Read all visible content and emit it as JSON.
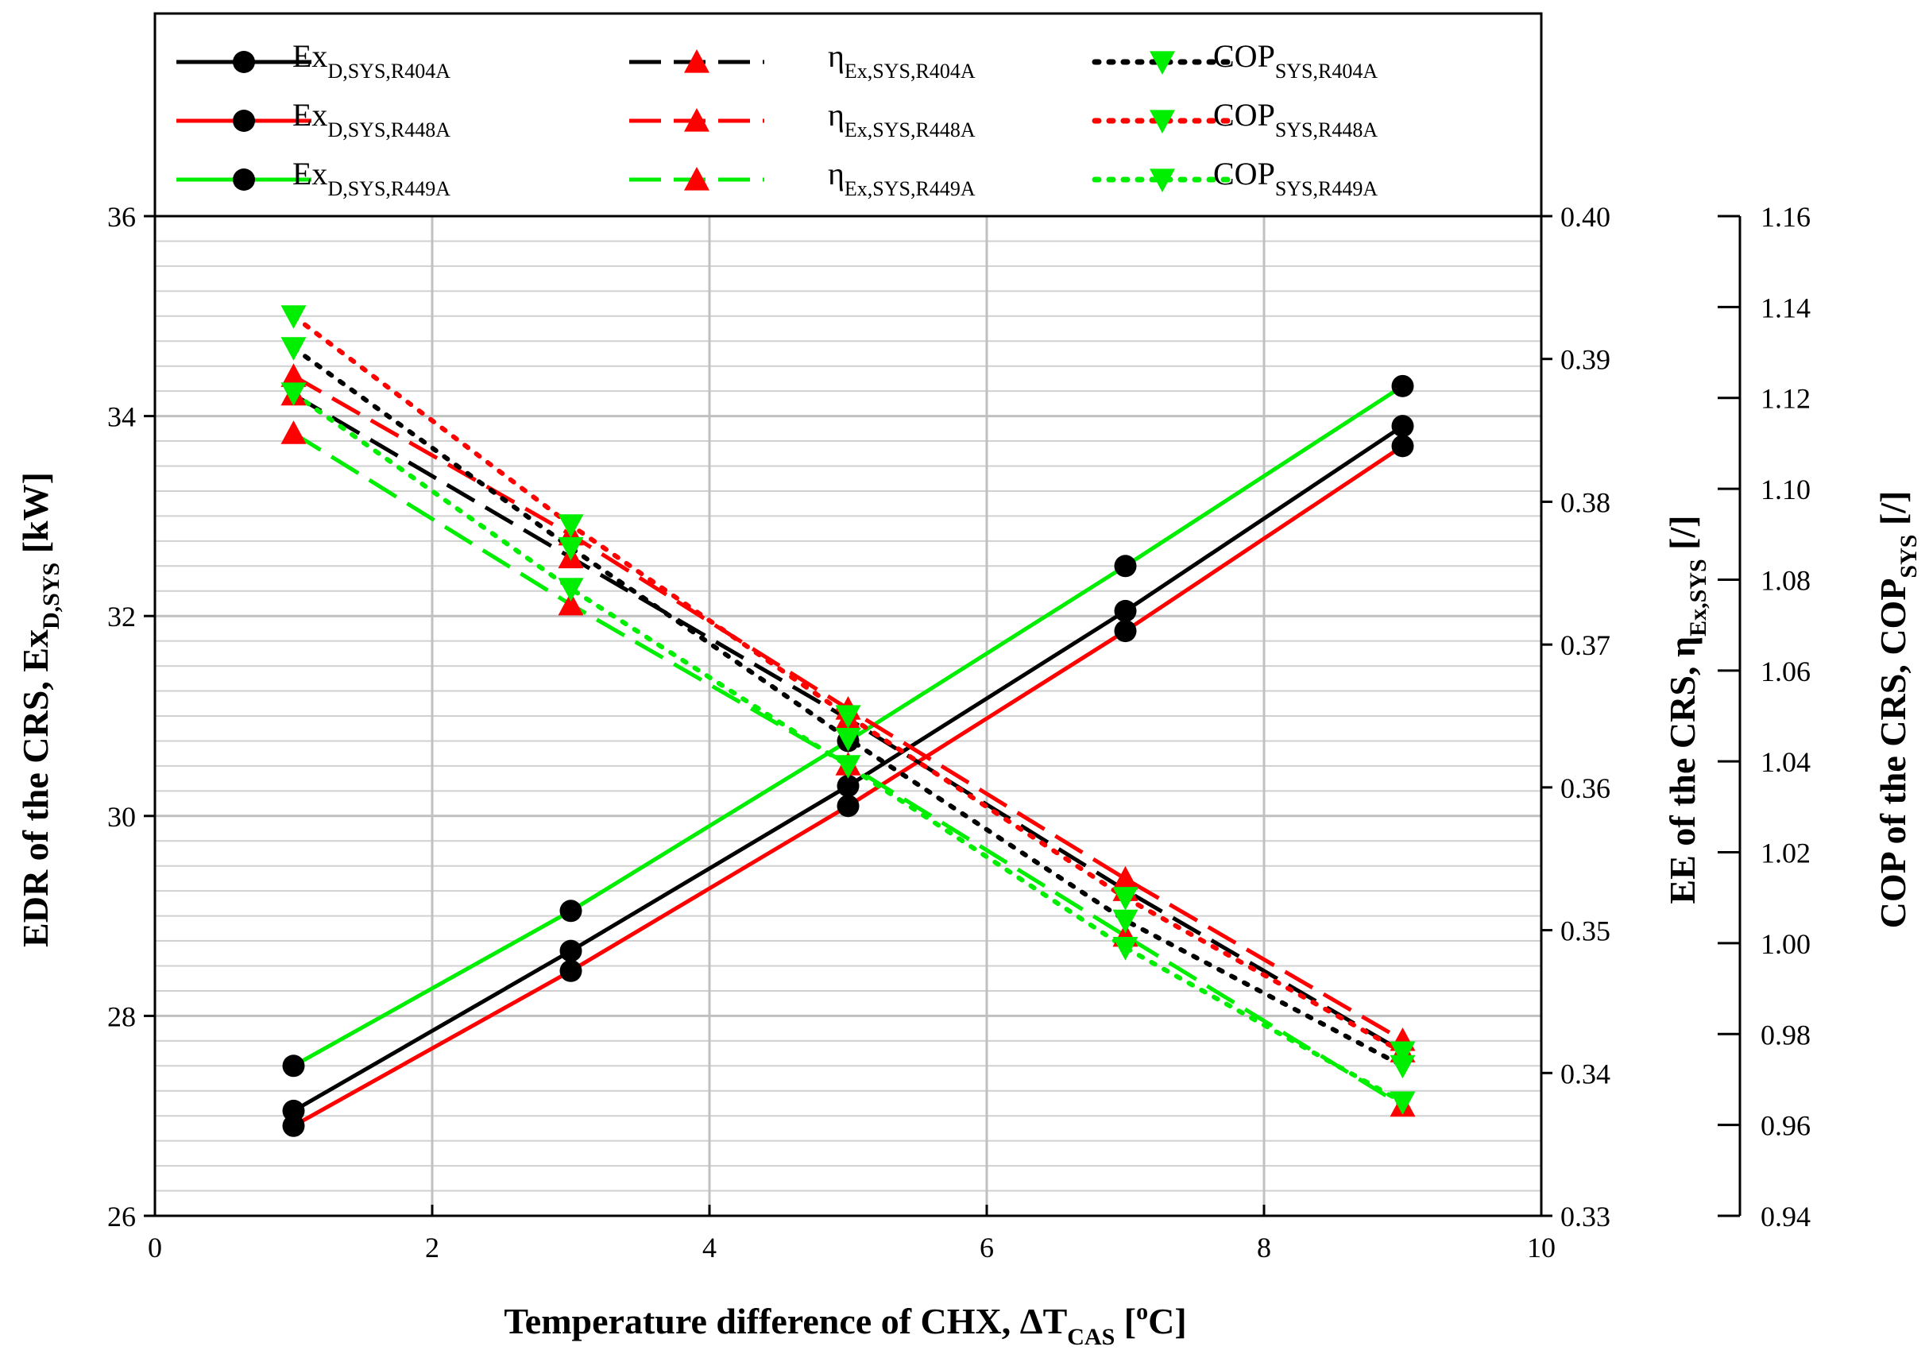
{
  "chart_data": {
    "type": "line",
    "x": [
      1,
      3,
      5,
      7,
      9
    ],
    "xlabel": {
      "main": "Temperature difference of CHX, ΔT",
      "sub": "CAS",
      "open": " [",
      "sup": "o",
      "close": "C]"
    },
    "ylabel_left": {
      "main": "EDR of the CRS, Ex",
      "sub": "D,SYS",
      "unit": " [kW]"
    },
    "ylabel_right1": {
      "main": "EE of the CRS, η",
      "sub": "Ex,SYS",
      "unit": " [/]"
    },
    "ylabel_right2": {
      "main": "COP of the CRS, COP",
      "sub": "SYS",
      "unit": " [/]"
    },
    "xlim": [
      0,
      10
    ],
    "xticks": [
      "0",
      "2",
      "4",
      "6",
      "8",
      "10"
    ],
    "ylim_left": [
      26,
      36
    ],
    "yticks_left": [
      "26",
      "28",
      "30",
      "32",
      "34",
      "36"
    ],
    "ylim_right1": [
      0.33,
      0.4
    ],
    "yticks_right1": [
      "0.33",
      "0.34",
      "0.35",
      "0.36",
      "0.37",
      "0.38",
      "0.39",
      "0.40"
    ],
    "ylim_right2": [
      0.94,
      1.16
    ],
    "yticks_right2": [
      "0.94",
      "0.96",
      "0.98",
      "1.00",
      "1.02",
      "1.04",
      "1.06",
      "1.08",
      "1.10",
      "1.12",
      "1.14",
      "1.16"
    ],
    "grid": true,
    "legend_position": "top, above plot",
    "series": [
      {
        "name": "Ex",
        "sub": "D,SYS,R404A",
        "axis": "left",
        "style": "solid",
        "marker": "circle",
        "color": "#000000",
        "marker_color": "#000000",
        "values": [
          27.05,
          28.65,
          30.3,
          32.05,
          33.9
        ]
      },
      {
        "name": "Ex",
        "sub": "D,SYS,R448A",
        "axis": "left",
        "style": "solid",
        "marker": "circle",
        "color": "#ff0000",
        "marker_color": "#000000",
        "values": [
          26.9,
          28.45,
          30.1,
          31.85,
          33.7
        ]
      },
      {
        "name": "Ex",
        "sub": "D,SYS,R449A",
        "axis": "left",
        "style": "solid",
        "marker": "circle",
        "color": "#00ee00",
        "marker_color": "#000000",
        "values": [
          27.5,
          29.05,
          30.75,
          32.5,
          34.3
        ]
      },
      {
        "name": "η",
        "sub": "Ex,SYS,R404A",
        "axis": "right1",
        "style": "dashed",
        "marker": "triangle-up",
        "color": "#000000",
        "marker_color": "#ff0000",
        "values": [
          0.3875,
          0.3761,
          0.3648,
          0.3528,
          0.3415
        ]
      },
      {
        "name": "η",
        "sub": "Ex,SYS,R448A",
        "axis": "right1",
        "style": "dashed",
        "marker": "triangle-up",
        "color": "#ff0000",
        "marker_color": "#ff0000",
        "values": [
          0.3888,
          0.3777,
          0.3655,
          0.3536,
          0.3423
        ]
      },
      {
        "name": "η",
        "sub": "Ex,SYS,R449A",
        "axis": "right1",
        "style": "dashed",
        "marker": "triangle-up",
        "color": "#00ee00",
        "marker_color": "#ff0000",
        "values": [
          0.3848,
          0.3728,
          0.3616,
          0.3496,
          0.3377
        ]
      },
      {
        "name": "COP",
        "sub": "SYS,R404A",
        "axis": "right2",
        "style": "dotted",
        "marker": "triangle-down",
        "color": "#000000",
        "marker_color": "#00ee00",
        "values": [
          1.131,
          1.087,
          1.045,
          1.005,
          0.973
        ]
      },
      {
        "name": "COP",
        "sub": "SYS,R448A",
        "axis": "right2",
        "style": "dotted",
        "marker": "triangle-down",
        "color": "#ff0000",
        "marker_color": "#00ee00",
        "values": [
          1.138,
          1.092,
          1.05,
          1.01,
          0.976
        ]
      },
      {
        "name": "COP",
        "sub": "SYS,R449A",
        "axis": "right2",
        "style": "dotted",
        "marker": "triangle-down",
        "color": "#00ee00",
        "marker_color": "#00ee00",
        "values": [
          1.121,
          1.078,
          1.039,
          0.999,
          0.965
        ]
      }
    ]
  }
}
